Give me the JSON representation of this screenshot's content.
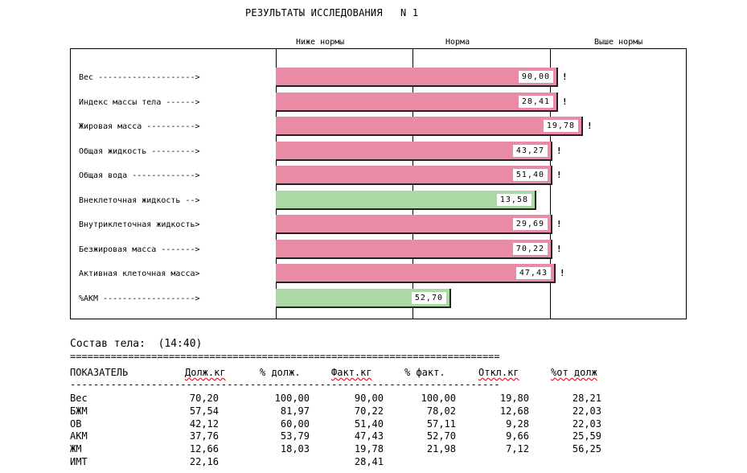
{
  "title": "РЕЗУЛЬТАТЫ ИССЛЕДОВАНИЯ   N 1",
  "column_headers": [
    "Ниже нормы",
    "Норма",
    "Выше нормы"
  ],
  "bars": [
    {
      "label": "Вес -------------------->",
      "value": "90,00",
      "status": "high",
      "flag": "!",
      "level": 1.03
    },
    {
      "label": "Индекс массы тела ------>",
      "value": "28,41",
      "status": "high",
      "flag": "!",
      "level": 1.03
    },
    {
      "label": "Жировая масса ---------->",
      "value": "19,78",
      "status": "high",
      "flag": "!",
      "level": 1.12
    },
    {
      "label": "Общая жидкость --------->",
      "value": "43,27",
      "status": "high",
      "flag": "!",
      "level": 1.01
    },
    {
      "label": "Общая вода ------------->",
      "value": "51,40",
      "status": "high",
      "flag": "!",
      "level": 1.01
    },
    {
      "label": "Внеклеточная жидкость -->",
      "value": "13,58",
      "status": "normal",
      "flag": "",
      "level": 0.95
    },
    {
      "label": "Внутриклеточная жидкость>",
      "value": "29,69",
      "status": "high",
      "flag": "!",
      "level": 1.01
    },
    {
      "label": "Безжировая масса ------->",
      "value": "70,22",
      "status": "high",
      "flag": "!",
      "level": 1.01
    },
    {
      "label": "Активная клеточная масса>",
      "value": "47,43",
      "status": "high",
      "flag": "!",
      "level": 1.02
    },
    {
      "label": "%АКМ ------------------->",
      "value": "52,70",
      "status": "normal",
      "flag": "",
      "level": 0.64
    }
  ],
  "body_composition": {
    "title": "Состав тела:  (14:40)",
    "separator_double": "==========================================================================",
    "separator_single": "--------------------------------------------------------------------------",
    "headers": [
      "ПОКАЗАТЕЛЬ",
      "Долж.кг",
      "% долж.",
      "Факт.кг",
      "% факт.",
      "Откл.кг",
      "%от долж"
    ],
    "rows": [
      [
        "Вес",
        "70,20",
        "100,00",
        "90,00",
        "100,00",
        "19,80",
        "28,21"
      ],
      [
        "БЖМ",
        "57,54",
        "81,97",
        "70,22",
        "78,02",
        "12,68",
        "22,03"
      ],
      [
        "ОВ",
        "42,12",
        "60,00",
        "51,40",
        "57,11",
        "9,28",
        "22,03"
      ],
      [
        "АКМ",
        "37,76",
        "53,79",
        "47,43",
        "52,70",
        "9,66",
        "25,59"
      ],
      [
        "ЖМ",
        "12,66",
        "18,03",
        "19,78",
        "21,98",
        "7,12",
        "56,25"
      ],
      [
        "ИМТ",
        "22,16",
        "",
        "28,41",
        "",
        "",
        ""
      ]
    ]
  },
  "colors": {
    "high": "#e98ba5",
    "normal": "#acd8a5"
  }
}
